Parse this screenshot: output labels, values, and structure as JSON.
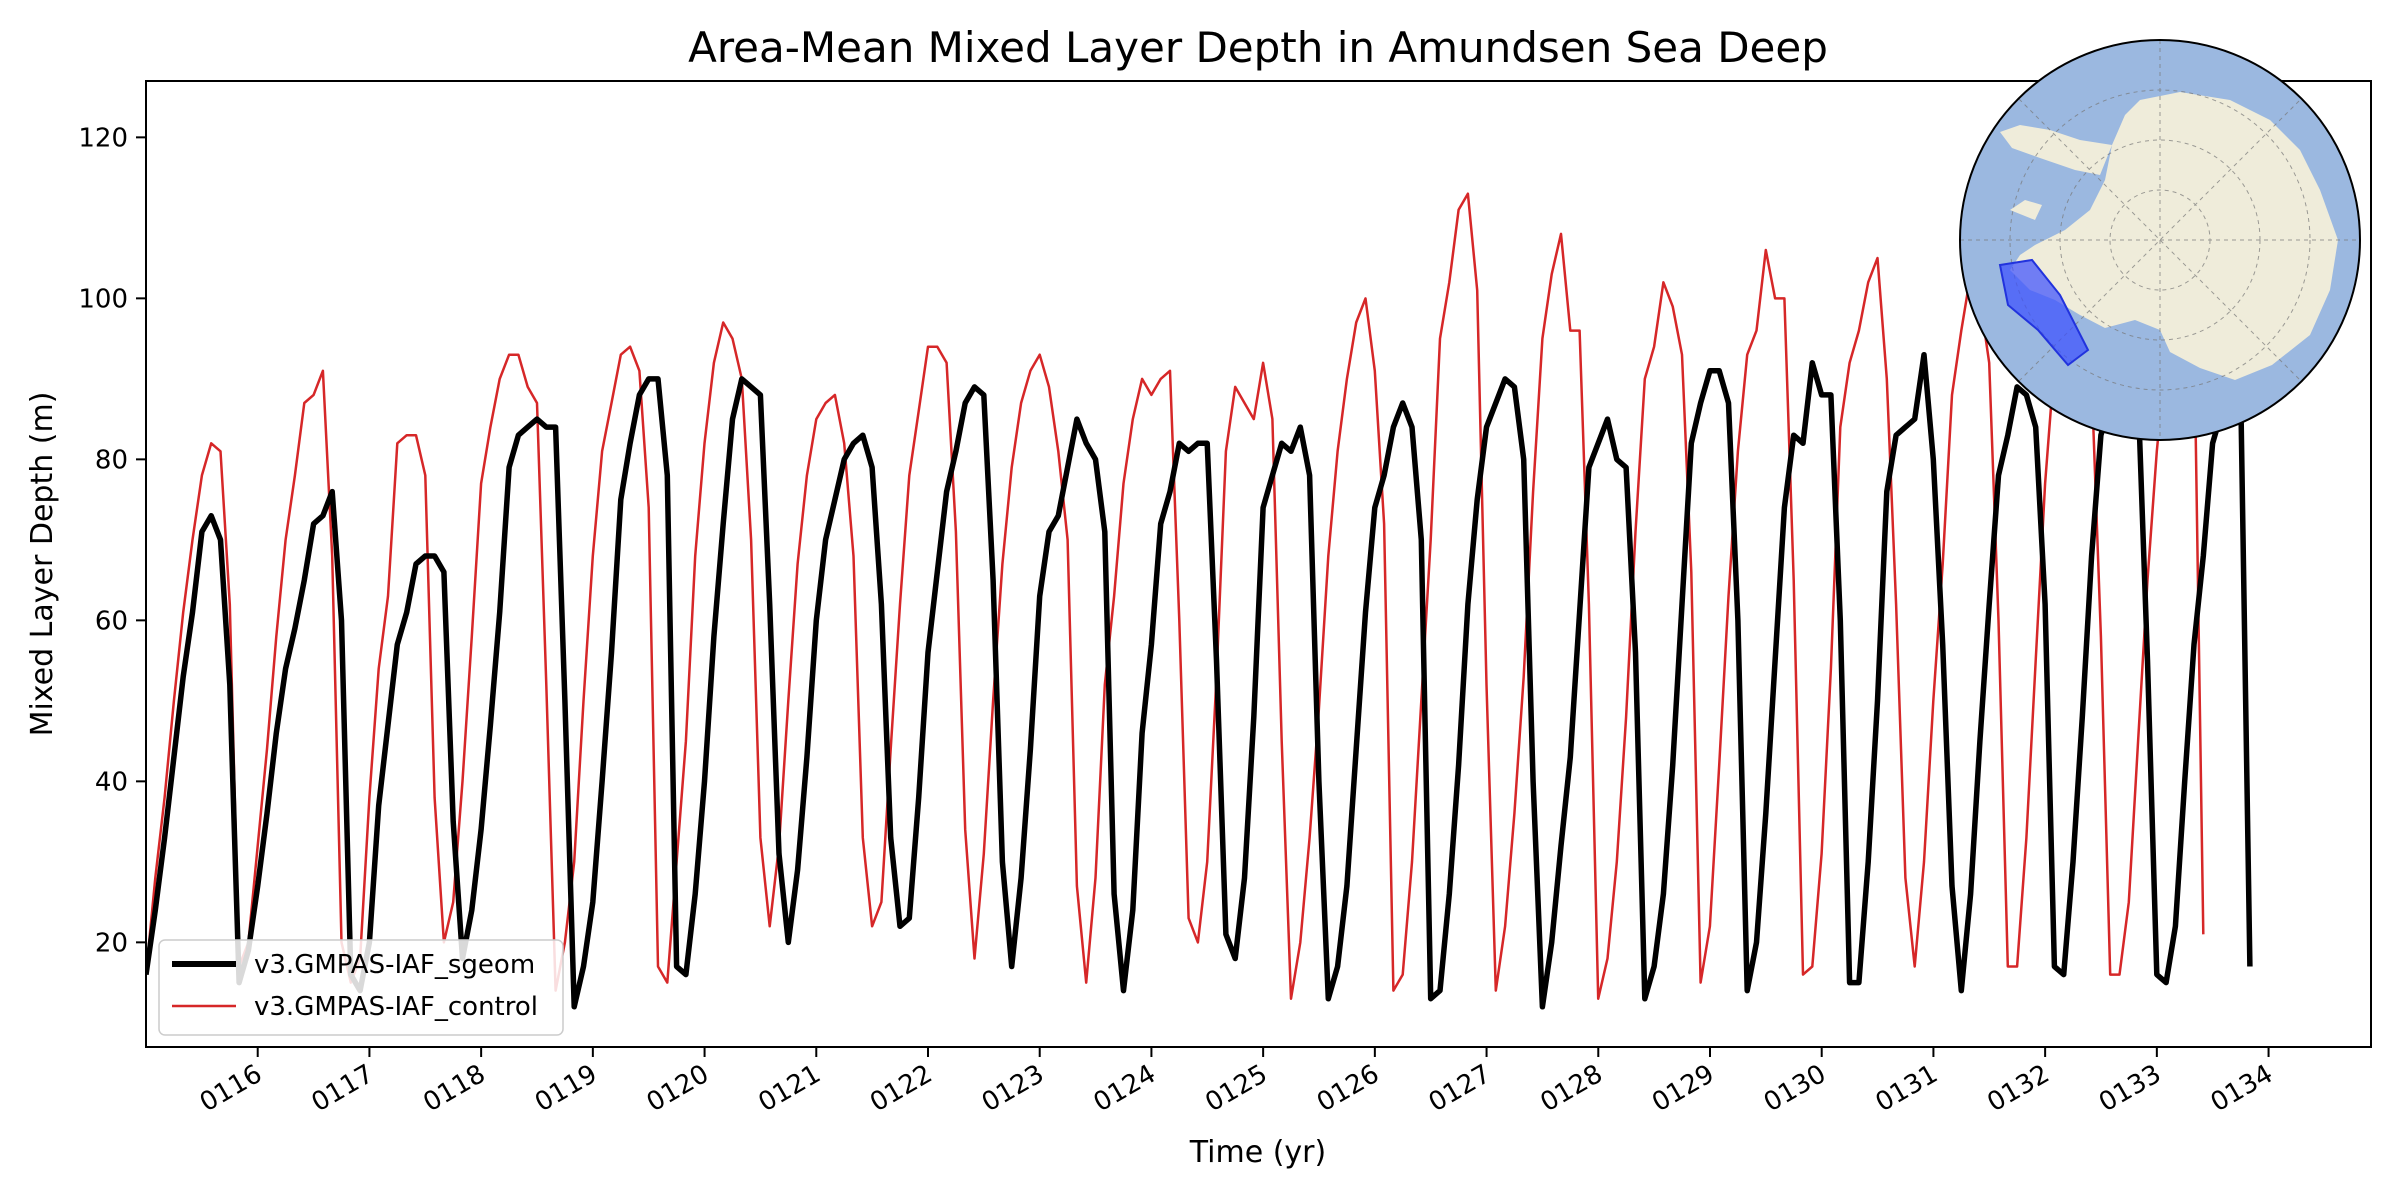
{
  "chart_data": {
    "type": "line",
    "title": "Area-Mean Mixed Layer Depth in Amundsen Sea Deep",
    "xlabel": "Time (yr)",
    "ylabel": "Mixed Layer Depth (m)",
    "xlim": [
      115.0,
      134.917
    ],
    "ylim": [
      7,
      127
    ],
    "yticks": [
      20,
      40,
      60,
      80,
      100,
      120
    ],
    "xticks": [
      116,
      117,
      118,
      119,
      120,
      121,
      122,
      123,
      124,
      125,
      126,
      127,
      128,
      129,
      130,
      131,
      132,
      133,
      134
    ],
    "xtick_labels": [
      "0116",
      "0117",
      "0118",
      "0119",
      "0120",
      "0121",
      "0122",
      "0123",
      "0124",
      "0125",
      "0126",
      "0127",
      "0128",
      "0129",
      "0130",
      "0131",
      "0132",
      "0133",
      "0134"
    ],
    "grid": false,
    "legend_position": "lower left",
    "inset": "south-polar-map-amundsen-sea-region",
    "x_start": 115.0,
    "x_step": 0.08333,
    "series": [
      {
        "name": "v3.GMPAS-IAF_sgeom",
        "color": "#000000",
        "values": [
          16,
          24,
          33,
          43,
          53,
          61,
          71,
          73,
          70,
          52,
          15,
          19,
          27,
          36,
          46,
          54,
          59,
          65,
          72,
          73,
          76,
          60,
          16,
          14,
          20,
          37,
          47,
          57,
          61,
          67,
          68,
          68,
          66,
          35,
          18,
          24,
          34,
          47,
          61,
          79,
          83,
          84,
          85,
          84,
          84,
          50,
          12,
          17,
          25,
          40,
          56,
          75,
          82,
          88,
          90,
          90,
          78,
          17,
          16,
          26,
          40,
          58,
          72,
          85,
          90,
          89,
          88,
          62,
          31,
          20,
          29,
          43,
          60,
          70,
          75,
          80,
          82,
          83,
          79,
          62,
          33,
          22,
          23,
          38,
          56,
          66,
          76,
          81,
          87,
          89,
          88,
          65,
          30,
          17,
          28,
          44,
          63,
          71,
          73,
          79,
          85,
          82,
          80,
          71,
          26,
          14,
          24,
          46,
          57,
          72,
          76,
          82,
          81,
          82,
          82,
          55,
          21,
          18,
          28,
          48,
          74,
          78,
          82,
          81,
          84,
          78,
          40,
          13,
          17,
          27,
          44,
          61,
          74,
          78,
          84,
          87,
          84,
          70,
          13,
          14,
          26,
          42,
          62,
          75,
          84,
          87,
          90,
          89,
          80,
          40,
          12,
          20,
          32,
          43,
          61,
          79,
          82,
          85,
          80,
          79,
          56,
          13,
          17,
          26,
          42,
          62,
          82,
          87,
          91,
          91,
          87,
          60,
          14,
          20,
          36,
          55,
          74,
          83,
          82,
          92,
          88,
          88,
          60,
          15,
          15,
          30,
          50,
          76,
          83,
          84,
          85,
          93,
          80,
          57,
          27,
          14,
          26,
          45,
          62,
          78,
          83,
          89,
          88,
          84,
          62,
          17,
          16,
          30,
          48,
          68,
          83,
          87,
          90,
          91,
          88,
          55,
          16,
          15,
          22,
          40,
          57,
          68,
          82,
          86,
          88,
          90,
          17
        ]
      },
      {
        "name": "v3.GMPAS-IAF_control",
        "color": "#d62728",
        "values": [
          16,
          28,
          38,
          50,
          61,
          70,
          78,
          82,
          81,
          62,
          17,
          20,
          32,
          44,
          58,
          70,
          78,
          87,
          88,
          91,
          68,
          20,
          15,
          18,
          38,
          54,
          63,
          82,
          83,
          83,
          78,
          38,
          20,
          25,
          40,
          58,
          77,
          84,
          90,
          93,
          93,
          89,
          87,
          52,
          14,
          20,
          30,
          50,
          68,
          81,
          87,
          93,
          94,
          91,
          74,
          17,
          15,
          30,
          45,
          68,
          82,
          92,
          97,
          95,
          90,
          70,
          33,
          22,
          32,
          50,
          67,
          78,
          85,
          87,
          88,
          82,
          68,
          33,
          22,
          25,
          44,
          62,
          78,
          86,
          94,
          94,
          92,
          71,
          34,
          18,
          31,
          50,
          67,
          79,
          87,
          91,
          93,
          89,
          81,
          70,
          27,
          15,
          28,
          52,
          63,
          77,
          85,
          90,
          88,
          90,
          91,
          60,
          23,
          20,
          30,
          53,
          81,
          89,
          87,
          85,
          92,
          85,
          45,
          13,
          20,
          33,
          49,
          68,
          81,
          90,
          97,
          100,
          91,
          72,
          14,
          16,
          30,
          50,
          70,
          95,
          102,
          111,
          113,
          101,
          52,
          14,
          22,
          36,
          53,
          76,
          95,
          103,
          108,
          96,
          96,
          62,
          13,
          18,
          30,
          48,
          71,
          90,
          94,
          102,
          99,
          93,
          66,
          15,
          22,
          42,
          63,
          81,
          93,
          96,
          106,
          100,
          100,
          65,
          16,
          17,
          31,
          54,
          84,
          92,
          96,
          102,
          105,
          90,
          62,
          28,
          17,
          30,
          50,
          67,
          88,
          96,
          103,
          100,
          92,
          60,
          17,
          17,
          33,
          55,
          77,
          92,
          97,
          99,
          96,
          90,
          58,
          16,
          16,
          25,
          45,
          65,
          81,
          93,
          97,
          97,
          97,
          21
        ]
      }
    ]
  }
}
